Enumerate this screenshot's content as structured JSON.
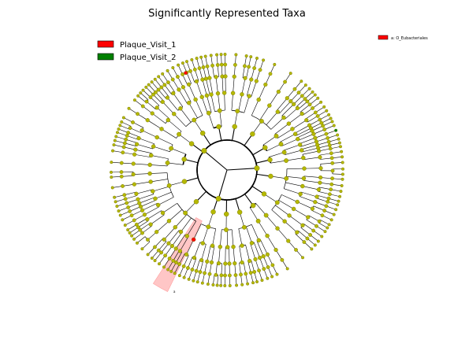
{
  "title": "Significantly Represented Taxa",
  "legend": [
    {
      "label": "Plaque_Visit_1",
      "color": "#ff0000"
    },
    {
      "label": "Plaque_Visit_2",
      "color": "#008000"
    }
  ],
  "biomarker_key": [
    {
      "label": "a: O_Eubacteriales",
      "color": "#ff0000"
    }
  ],
  "clade_label": "a",
  "colors": {
    "node": "#b5b800",
    "node_edge": "#6e6e00",
    "highlight": "#ffb3b3",
    "branch": "#000000"
  }
}
